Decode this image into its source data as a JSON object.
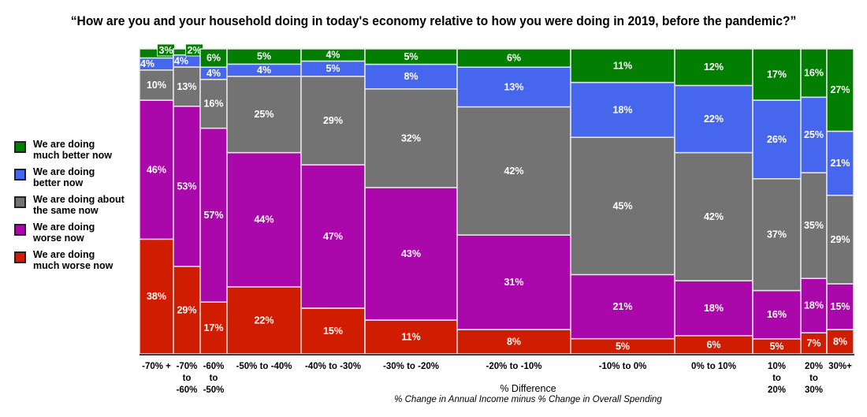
{
  "chart_data": {
    "type": "bar",
    "subtype": "mosaic-stacked-100",
    "title": "“How are you and your household doing in today's economy relative to how you were doing in 2019, before the pandemic?”",
    "xlabel": "% Difference",
    "xlabel_sub": "% Change in Annual Income minus % Change in Overall Spending",
    "ylabel": "",
    "ylim": [
      0,
      100
    ],
    "grid": false,
    "legend_position": "left",
    "categories": [
      [
        "-70% +"
      ],
      [
        "-70%",
        "to",
        "-60%"
      ],
      [
        "-60%",
        "to",
        "-50%"
      ],
      [
        "-50% to -40%"
      ],
      [
        "-40% to -30%"
      ],
      [
        "-30% to -20%"
      ],
      [
        "-20% to -10%"
      ],
      [
        "-10% to 0%"
      ],
      [
        "0% to 10%"
      ],
      [
        "10%",
        "to",
        "20%"
      ],
      [
        "20%",
        "to",
        "30%"
      ],
      [
        "30%+"
      ]
    ],
    "column_width_shares": [
      43,
      34,
      34,
      94,
      81,
      117,
      144,
      132,
      99,
      61,
      33,
      34
    ],
    "series": [
      {
        "name": "We are doing much worse now",
        "legend": [
          "We are doing",
          "much worse now"
        ],
        "color": "#d01c00",
        "values": [
          38,
          29,
          17,
          22,
          15,
          11,
          8,
          5,
          6,
          5,
          7,
          8
        ]
      },
      {
        "name": "We are doing worse now",
        "legend": [
          "We are doing",
          "worse now"
        ],
        "color": "#aa08aa",
        "values": [
          46,
          53,
          57,
          44,
          47,
          43,
          31,
          21,
          18,
          16,
          18,
          15
        ]
      },
      {
        "name": "We are doing about the same now",
        "legend": [
          "We are doing about",
          "the same now"
        ],
        "color": "#737373",
        "values": [
          10,
          13,
          16,
          25,
          29,
          32,
          42,
          45,
          42,
          37,
          35,
          29
        ]
      },
      {
        "name": "We are doing better now",
        "legend": [
          "We are doing",
          "better now"
        ],
        "color": "#4766ee",
        "values": [
          4,
          4,
          4,
          4,
          5,
          8,
          13,
          18,
          22,
          26,
          25,
          21
        ]
      },
      {
        "name": "We are doing much better now",
        "legend": [
          "We are doing",
          "much better now"
        ],
        "color": "#027f02",
        "values": [
          3,
          2,
          6,
          5,
          4,
          5,
          6,
          11,
          12,
          17,
          16,
          27
        ]
      }
    ]
  }
}
